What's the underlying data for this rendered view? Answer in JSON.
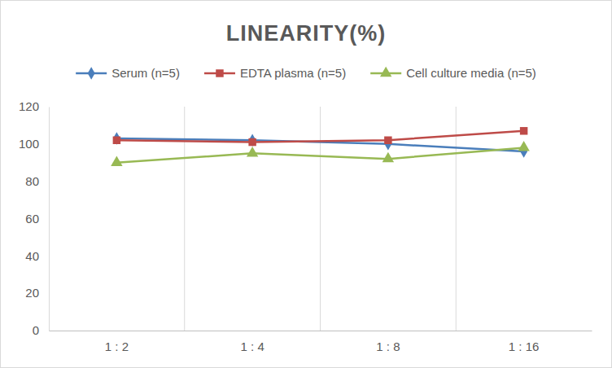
{
  "chart_data": {
    "type": "line",
    "title": "LINEARITY(%)",
    "categories": [
      "1 : 2",
      "1 : 4",
      "1 : 8",
      "1 : 16"
    ],
    "series": [
      {
        "name": "Serum (n=5)",
        "color": "#4a7ebb",
        "marker": "diamond",
        "values": [
          103,
          102,
          100,
          96
        ]
      },
      {
        "name": "EDTA plasma (n=5)",
        "color": "#be4b48",
        "marker": "square",
        "values": [
          102,
          101,
          102,
          107
        ]
      },
      {
        "name": "Cell culture media (n=5)",
        "color": "#98b954",
        "marker": "triangle",
        "values": [
          90,
          95,
          92,
          98
        ]
      }
    ],
    "ylim": [
      0,
      120
    ],
    "yticks": [
      0,
      20,
      40,
      60,
      80,
      100,
      120
    ],
    "grid": true,
    "legend": "top"
  }
}
